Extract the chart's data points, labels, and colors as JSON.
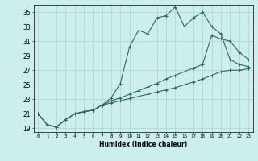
{
  "xlabel": "Humidex (Indice chaleur)",
  "bg_color": "#cceeed",
  "grid_color": "#aad4d4",
  "line_color": "#2e6b5e",
  "xlim": [
    -0.5,
    23.5
  ],
  "ylim": [
    18.5,
    36.0
  ],
  "yticks": [
    19,
    21,
    23,
    25,
    27,
    29,
    31,
    33,
    35
  ],
  "xticks": [
    0,
    1,
    2,
    3,
    4,
    5,
    6,
    7,
    8,
    9,
    10,
    11,
    12,
    13,
    14,
    15,
    16,
    17,
    18,
    19,
    20,
    21,
    22,
    23
  ],
  "line1_x": [
    0,
    1,
    2,
    3,
    4,
    5,
    6,
    7,
    8,
    9,
    10,
    11,
    12,
    13,
    14,
    15,
    16,
    17,
    18,
    19,
    20,
    21,
    22,
    23
  ],
  "line1_y": [
    21.0,
    19.5,
    19.2,
    20.2,
    21.0,
    21.3,
    21.5,
    22.2,
    23.2,
    25.2,
    30.2,
    32.5,
    32.0,
    34.2,
    34.5,
    35.7,
    33.0,
    34.2,
    35.0,
    33.0,
    32.0,
    28.5,
    27.8,
    27.5
  ],
  "line2_x": [
    0,
    1,
    2,
    3,
    4,
    5,
    6,
    7,
    8,
    9,
    10,
    11,
    12,
    13,
    14,
    15,
    16,
    17,
    18,
    19,
    20,
    21,
    22,
    23
  ],
  "line2_y": [
    21.0,
    19.5,
    19.2,
    20.2,
    21.0,
    21.3,
    21.5,
    22.2,
    22.8,
    23.2,
    23.7,
    24.2,
    24.7,
    25.2,
    25.8,
    26.3,
    26.8,
    27.3,
    27.8,
    31.8,
    31.3,
    31.0,
    29.5,
    28.5
  ],
  "line3_x": [
    0,
    1,
    2,
    3,
    4,
    5,
    6,
    7,
    8,
    9,
    10,
    11,
    12,
    13,
    14,
    15,
    16,
    17,
    18,
    19,
    20,
    21,
    22,
    23
  ],
  "line3_y": [
    21.0,
    19.5,
    19.2,
    20.2,
    21.0,
    21.3,
    21.5,
    22.2,
    22.5,
    22.8,
    23.1,
    23.4,
    23.7,
    24.0,
    24.3,
    24.6,
    25.0,
    25.4,
    25.8,
    26.3,
    26.8,
    27.0,
    27.0,
    27.2
  ]
}
